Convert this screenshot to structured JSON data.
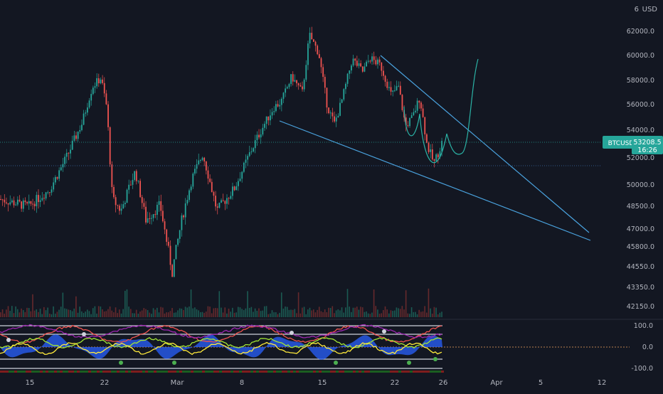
{
  "chart_data": {
    "type": "candlestick",
    "symbol": "BTCUSD",
    "currency": "USD",
    "last_price": "53208.5",
    "countdown": "16:26",
    "x_tick_labels": [
      "15",
      "22",
      "Mar",
      "8",
      "15",
      "22",
      "26",
      "Apr",
      "5",
      "12"
    ],
    "y_tick_labels": [
      "62000.0",
      "60000.0",
      "58000.0",
      "56000.0",
      "54000.0",
      "52000.0",
      "50000.0",
      "48500.0",
      "47000.0",
      "45800.0",
      "44550.0",
      "43350.0",
      "42150.0"
    ],
    "y_ticks": [
      62000,
      60000,
      58000,
      56000,
      54000,
      52000,
      50000,
      48500,
      47000,
      45800,
      44550,
      43350,
      42150
    ],
    "oscillator": {
      "tick_labels": [
        "100.0",
        "0.0",
        "-100.0"
      ],
      "ticks": [
        100,
        0,
        -100
      ]
    },
    "colors": {
      "background": "#131722",
      "up": "#26a69a",
      "down": "#ef5350",
      "trendline": "#4aa3df",
      "projection": "#2bb3a6",
      "price_tag": "#26a69a",
      "text": "#b2b5be"
    }
  }
}
